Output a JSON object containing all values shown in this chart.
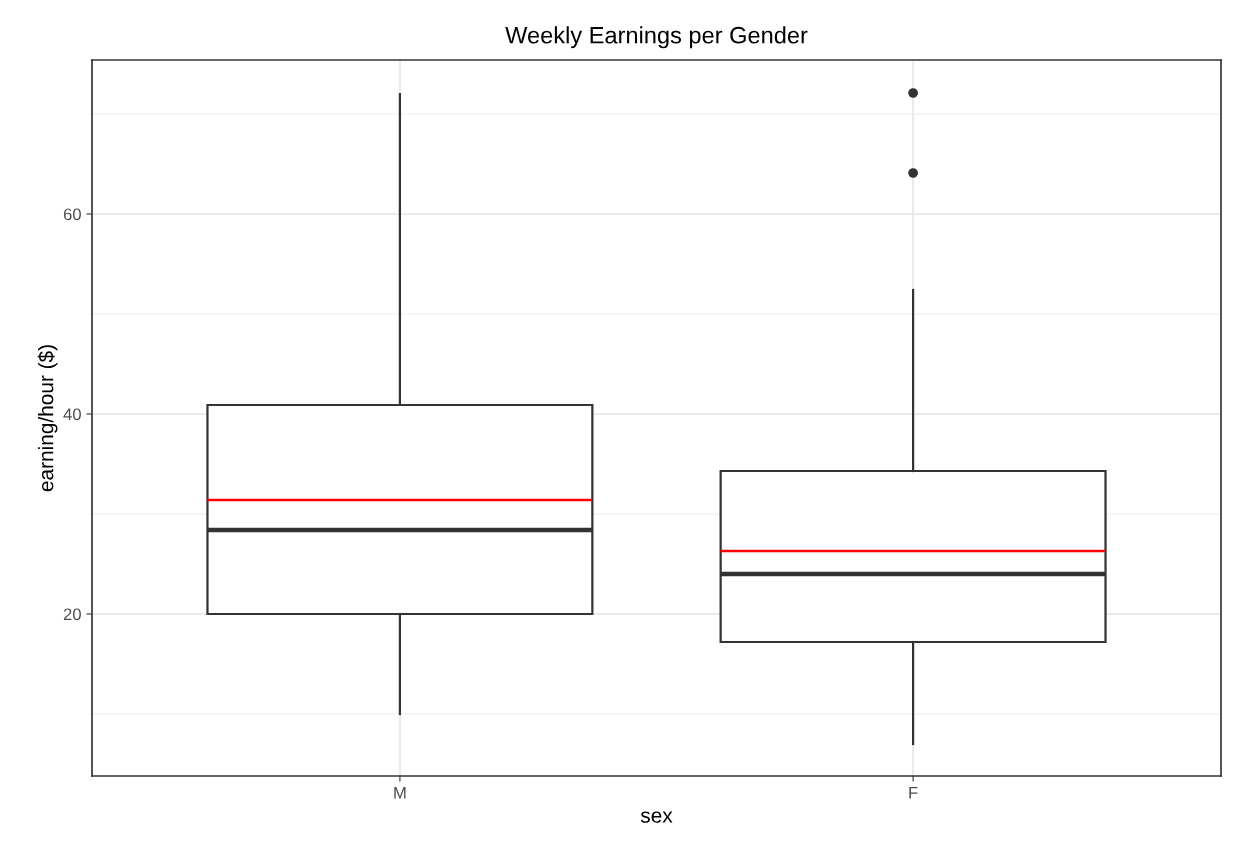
{
  "chart_data": {
    "type": "box",
    "title": "Weekly Earnings per Gender",
    "xlabel": "sex",
    "ylabel": "earning/hour ($)",
    "categories": [
      "M",
      "F"
    ],
    "boxes": [
      {
        "low": 10,
        "q1": 20,
        "median": 28.4,
        "q3": 40.9,
        "high": 72,
        "mean": 31.4
      },
      {
        "low": 7,
        "q1": 17.2,
        "median": 24.0,
        "q3": 34.3,
        "high": 52.4,
        "mean": 26.3,
        "outliers": [
          64.1,
          72.1
        ]
      }
    ],
    "color": "#333333",
    "ylim": [
      3.8,
      75.4
    ],
    "yticks": [
      20,
      40,
      60
    ],
    "grid": true,
    "legend": false
  }
}
